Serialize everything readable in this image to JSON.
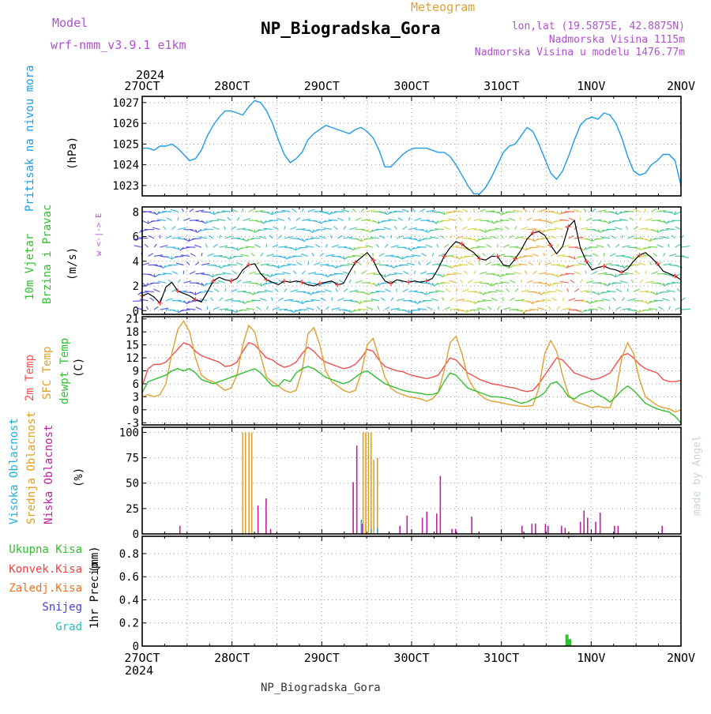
{
  "header": {
    "model_label": "Model",
    "model_name": "wrf-nmm_v3.9.1 e1km",
    "product": "Meteogram",
    "station": "NP_Biogradska_Gora",
    "coords": "lon,lat (19.5875E, 42.8875N)",
    "elevation": "Nadmorska Visina 1115m",
    "model_elevation": "Nadmorska Visina u modelu 1476.77m",
    "year_top": "2024",
    "year_bottom": "2024",
    "footer_station": "NP_Biogradska_Gora",
    "credit": "made by Angel"
  },
  "date_labels": [
    "27OCT",
    "28OCT",
    "29OCT",
    "30OCT",
    "31OCT",
    "1NOV",
    "2NOV"
  ],
  "colors": {
    "pressure": "#1e9be6",
    "temp2m": "#f05050",
    "sfc": "#e0a030",
    "dewpt": "#30c030",
    "high_cloud": "#20b0e0",
    "mid_cloud": "#e0a020",
    "low_cloud": "#c020a0",
    "total_precip": "#30c030",
    "conv_precip": "#f04040",
    "freezing": "#f07020",
    "snow": "#4040e0",
    "hail": "#20c0c0",
    "label_purple": "#b050d0",
    "label_orange": "#e0a030"
  },
  "chart_data": [
    {
      "type": "line",
      "panel": "pressure",
      "ylabel": "Pritisak na nivou mora",
      "unit": "(hPa)",
      "ylim": [
        1022.5,
        1027.3
      ],
      "yticks": [
        1023,
        1024,
        1025,
        1026,
        1027
      ],
      "series": [
        {
          "values": [
            1024.8,
            1024.8,
            1024.7,
            1024.9,
            1024.9,
            1025.0,
            1024.8,
            1024.5,
            1024.2,
            1024.3,
            1024.7,
            1025.4,
            1025.9,
            1026.3,
            1026.6,
            1026.6,
            1026.5,
            1026.4,
            1026.8,
            1027.1,
            1027.0,
            1026.6,
            1026.0,
            1025.2,
            1024.5,
            1024.1,
            1024.3,
            1024.6,
            1025.2,
            1025.5,
            1025.7,
            1025.9,
            1025.8,
            1025.7,
            1025.6,
            1025.5,
            1025.7,
            1025.8,
            1025.6,
            1025.3,
            1024.7,
            1023.9,
            1023.9,
            1024.2,
            1024.5,
            1024.7,
            1024.8,
            1024.8,
            1024.8,
            1024.7,
            1024.6,
            1024.6,
            1024.4,
            1024.0,
            1023.5,
            1023.0,
            1022.6,
            1022.6,
            1022.9,
            1023.4,
            1024.0,
            1024.6,
            1024.9,
            1025.0,
            1025.4,
            1025.8,
            1025.6,
            1025.0,
            1024.3,
            1023.6,
            1023.3,
            1023.7,
            1024.4,
            1025.2,
            1025.9,
            1026.2,
            1026.3,
            1026.2,
            1026.5,
            1026.4,
            1026.0,
            1025.3,
            1024.4,
            1023.7,
            1023.5,
            1023.6,
            1024.0,
            1024.2,
            1024.5,
            1024.5,
            1024.2,
            1023.0
          ]
        }
      ]
    },
    {
      "type": "line",
      "panel": "wind",
      "ylabel": [
        "10m Vjetar",
        "Brzina i Pravac"
      ],
      "unit": "(m/s)",
      "compass": "w <-|-> E",
      "ylim": [
        -0.3,
        8.4
      ],
      "yticks": [
        0,
        2,
        4,
        6,
        8
      ],
      "series": [
        {
          "name": "speed",
          "values": [
            1.2,
            1.4,
            1.1,
            0.6,
            1.9,
            2.3,
            1.6,
            1.4,
            1.2,
            0.9,
            0.7,
            1.5,
            2.4,
            2.7,
            2.5,
            2.4,
            2.6,
            3.3,
            3.7,
            3.8,
            3.0,
            2.5,
            2.3,
            2.1,
            2.4,
            2.3,
            2.4,
            2.3,
            2.1,
            2.0,
            2.2,
            2.3,
            2.4,
            2.1,
            2.2,
            3.1,
            3.9,
            4.3,
            4.7,
            4.1,
            3.1,
            2.4,
            2.2,
            2.5,
            2.4,
            2.3,
            2.4,
            2.3,
            2.4,
            2.6,
            3.4,
            4.4,
            5.1,
            5.6,
            5.4,
            5.0,
            4.7,
            4.2,
            4.1,
            4.4,
            4.4,
            3.7,
            3.6,
            4.2,
            4.9,
            5.8,
            6.3,
            6.4,
            6.1,
            5.3,
            4.6,
            5.2,
            6.8,
            7.3,
            5.1,
            4.0,
            3.3,
            3.5,
            3.6,
            3.4,
            3.3,
            3.1,
            3.4,
            4.0,
            4.5,
            4.7,
            4.3,
            3.8,
            3.2,
            3.0,
            2.8,
            2.5
          ]
        }
      ]
    },
    {
      "type": "line",
      "panel": "temperature",
      "ylabel": [
        "2m Temp",
        "SFC Temp",
        "dewpt Temp"
      ],
      "unit": "(C)",
      "ylim": [
        -3.5,
        21.5
      ],
      "yticks": [
        -3,
        0,
        3,
        6,
        9,
        12,
        15,
        18,
        21
      ],
      "series": [
        {
          "name": "2m Temp",
          "values": [
            5.5,
            9.5,
            10.5,
            10.5,
            11.0,
            12.5,
            14.0,
            15.5,
            15.0,
            13.5,
            12.5,
            12.0,
            11.5,
            11.0,
            10.0,
            10.2,
            11.0,
            13.5,
            15.5,
            15.0,
            13.5,
            12.0,
            11.5,
            10.5,
            9.8,
            10.2,
            11.0,
            13.0,
            14.5,
            13.5,
            12.0,
            11.0,
            10.5,
            10.0,
            9.5,
            9.8,
            10.5,
            12.0,
            14.0,
            13.5,
            11.5,
            10.0,
            9.5,
            9.0,
            8.8,
            8.2,
            7.8,
            7.5,
            7.2,
            7.5,
            8.0,
            10.0,
            12.0,
            11.5,
            10.0,
            8.5,
            7.8,
            7.0,
            6.5,
            6.0,
            5.8,
            5.5,
            5.2,
            5.0,
            4.5,
            4.2,
            4.5,
            6.0,
            8.0,
            10.0,
            12.0,
            11.5,
            10.0,
            8.5,
            8.0,
            7.5,
            7.0,
            7.2,
            7.8,
            8.5,
            10.5,
            12.5,
            13.0,
            12.0,
            10.5,
            9.5,
            9.0,
            8.5,
            7.0,
            6.5,
            6.5,
            6.8
          ]
        },
        {
          "name": "SFC Temp",
          "values": [
            3.0,
            3.5,
            3.0,
            3.5,
            6.0,
            13.0,
            18.5,
            20.5,
            18.0,
            12.0,
            8.0,
            7.0,
            6.5,
            5.5,
            4.5,
            5.0,
            8.0,
            15.0,
            19.5,
            18.0,
            12.5,
            7.5,
            6.5,
            5.5,
            4.5,
            4.0,
            4.5,
            9.0,
            17.5,
            19.0,
            15.0,
            9.0,
            6.5,
            5.5,
            4.5,
            4.0,
            4.5,
            8.5,
            15.0,
            16.5,
            12.0,
            7.5,
            5.0,
            4.0,
            3.5,
            3.0,
            2.8,
            2.5,
            2.0,
            2.5,
            4.0,
            9.0,
            15.5,
            17.0,
            13.0,
            7.5,
            5.0,
            3.5,
            2.5,
            2.0,
            1.8,
            1.5,
            1.2,
            1.0,
            0.8,
            0.8,
            1.0,
            5.0,
            13.0,
            16.0,
            13.5,
            8.0,
            3.5,
            2.0,
            1.5,
            1.0,
            0.5,
            0.8,
            0.5,
            0.5,
            4.0,
            12.0,
            15.5,
            13.0,
            7.0,
            3.0,
            2.0,
            1.0,
            0.5,
            0.2,
            -0.5,
            0.0
          ]
        },
        {
          "name": "dewpt Temp",
          "values": [
            4.0,
            6.5,
            7.0,
            7.5,
            8.0,
            9.0,
            9.5,
            9.0,
            9.5,
            8.5,
            7.0,
            6.5,
            6.0,
            6.5,
            7.0,
            7.5,
            8.0,
            8.5,
            9.0,
            9.5,
            8.5,
            7.0,
            5.5,
            5.5,
            7.0,
            6.5,
            8.5,
            9.5,
            10.0,
            9.5,
            8.5,
            7.5,
            7.0,
            6.5,
            6.0,
            6.5,
            7.5,
            8.5,
            9.0,
            8.0,
            7.0,
            6.0,
            5.5,
            5.0,
            4.5,
            4.2,
            4.0,
            3.8,
            3.5,
            3.5,
            4.0,
            6.5,
            8.5,
            8.0,
            6.5,
            5.0,
            4.5,
            4.0,
            3.5,
            3.0,
            3.0,
            2.8,
            2.5,
            2.0,
            1.5,
            1.8,
            2.5,
            3.0,
            4.0,
            6.0,
            6.5,
            5.0,
            3.0,
            2.5,
            3.5,
            4.0,
            4.5,
            3.5,
            2.8,
            1.8,
            3.0,
            4.5,
            5.5,
            4.5,
            3.0,
            1.5,
            0.8,
            0.2,
            -0.2,
            -0.5,
            -1.5,
            -3.0
          ]
        }
      ]
    },
    {
      "type": "bar",
      "panel": "clouds",
      "ylabel": [
        "Visoka Oblacnost",
        "Srednja Oblacnost",
        "Niska Oblacnost"
      ],
      "unit": "(%)",
      "ylim": [
        0,
        105
      ],
      "yticks": [
        0,
        25,
        50,
        75,
        100
      ],
      "x_range_days": [
        0,
        6
      ],
      "series": [
        {
          "name": "Srednja Oblacnost",
          "points": [
            [
              1.12,
              100
            ],
            [
              1.15,
              100
            ],
            [
              1.19,
              100
            ],
            [
              1.22,
              100
            ],
            [
              2.46,
              100
            ],
            [
              2.49,
              100
            ],
            [
              2.52,
              100
            ],
            [
              2.55,
              100
            ],
            [
              2.58,
              73
            ],
            [
              2.62,
              75
            ]
          ]
        },
        {
          "name": "Niska Oblacnost",
          "points": [
            [
              0.42,
              8
            ],
            [
              1.29,
              28
            ],
            [
              1.38,
              35
            ],
            [
              1.43,
              5
            ],
            [
              2.35,
              51
            ],
            [
              2.39,
              87
            ],
            [
              2.45,
              10
            ],
            [
              2.87,
              8
            ],
            [
              2.95,
              18
            ],
            [
              3.12,
              16
            ],
            [
              3.17,
              22
            ],
            [
              3.28,
              20
            ],
            [
              3.32,
              57
            ],
            [
              3.45,
              5
            ],
            [
              3.49,
              5
            ],
            [
              3.67,
              17
            ],
            [
              4.23,
              8
            ],
            [
              4.34,
              10
            ],
            [
              4.38,
              10
            ],
            [
              4.49,
              10
            ],
            [
              4.52,
              8
            ],
            [
              4.67,
              8
            ],
            [
              4.71,
              6
            ],
            [
              4.88,
              12
            ],
            [
              4.92,
              23
            ],
            [
              4.96,
              16
            ],
            [
              5.05,
              12
            ],
            [
              5.1,
              21
            ],
            [
              5.26,
              8
            ],
            [
              5.3,
              8
            ],
            [
              5.79,
              8
            ]
          ]
        },
        {
          "name": "Visoka Oblacnost",
          "points": [
            [
              2.44,
              14
            ],
            [
              2.55,
              5
            ],
            [
              2.62,
              6
            ]
          ]
        }
      ]
    },
    {
      "type": "bar",
      "panel": "precip",
      "ylabel": "1hr Precip",
      "unit": "(mm)",
      "ylim": [
        0,
        0.95
      ],
      "yticks": [
        0,
        0.2,
        0.4,
        0.6,
        0.8
      ],
      "x_range_days": [
        0,
        6
      ],
      "legend": [
        "Ukupna Kisa",
        "Konvek.Kisa",
        "Zaledj.Kisa",
        "Snijeg",
        "Grad"
      ],
      "series": [
        {
          "name": "Ukupna Kisa",
          "points": [
            [
              4.73,
              0.1
            ],
            [
              4.76,
              0.06
            ]
          ]
        }
      ]
    }
  ]
}
